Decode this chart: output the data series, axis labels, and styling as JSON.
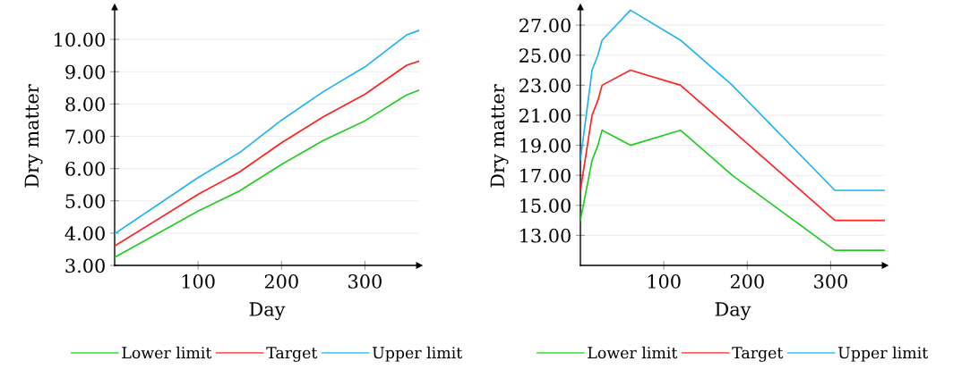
{
  "chart_data": [
    {
      "type": "line",
      "xlabel": "Day",
      "ylabel": "Dry matter",
      "x": [
        0,
        100,
        150,
        200,
        250,
        300,
        350,
        365
      ],
      "series": [
        {
          "name": "Lower limit",
          "color": "#22cc22",
          "values": [
            3.25,
            4.68,
            5.31,
            6.13,
            6.87,
            7.48,
            8.28,
            8.43
          ]
        },
        {
          "name": "Target",
          "color": "#ff2020",
          "values": [
            3.6,
            5.2,
            5.9,
            6.8,
            7.6,
            8.3,
            9.2,
            9.33
          ]
        },
        {
          "name": "Upper limit",
          "color": "#1fb4ec",
          "values": [
            3.98,
            5.72,
            6.5,
            7.5,
            8.38,
            9.15,
            10.14,
            10.28
          ]
        }
      ],
      "xlim": [
        0,
        365
      ],
      "ylim": [
        3,
        11
      ],
      "xticks": [
        100,
        200,
        300
      ],
      "yticks": [
        {
          "value": 3,
          "label": "3.00"
        },
        {
          "value": 4,
          "label": "4.00"
        },
        {
          "value": 5,
          "label": "5.00"
        },
        {
          "value": 6,
          "label": "6.00"
        },
        {
          "value": 7,
          "label": "7.00"
        },
        {
          "value": 8,
          "label": "8.00"
        },
        {
          "value": 9,
          "label": "9.00"
        },
        {
          "value": 10,
          "label": "10.00"
        }
      ],
      "grid": "y",
      "legend": "bottom"
    },
    {
      "type": "line",
      "xlabel": "Day",
      "ylabel": "Dry matter",
      "x": [
        0,
        14,
        21,
        26,
        60,
        120,
        182,
        305,
        365
      ],
      "series": [
        {
          "name": "Lower limit",
          "color": "#22cc22",
          "values": [
            14,
            18,
            19,
            20,
            19,
            20,
            17,
            12,
            12
          ]
        },
        {
          "name": "Target",
          "color": "#ff2020",
          "values": [
            16,
            21,
            22,
            23,
            24,
            23,
            20,
            14,
            14
          ]
        },
        {
          "name": "Upper limit",
          "color": "#1fb4ec",
          "values": [
            18,
            24,
            25,
            26,
            28,
            26,
            23,
            16,
            16
          ]
        }
      ],
      "xlim": [
        0,
        365
      ],
      "ylim": [
        11,
        28.2
      ],
      "xticks": [
        100,
        200,
        300
      ],
      "yticks": [
        {
          "value": 13,
          "label": "13.00"
        },
        {
          "value": 15,
          "label": "15.00"
        },
        {
          "value": 17,
          "label": "17.00"
        },
        {
          "value": 19,
          "label": "19.00"
        },
        {
          "value": 21,
          "label": "21.00"
        },
        {
          "value": 23,
          "label": "23.00"
        },
        {
          "value": 25,
          "label": "25.00"
        },
        {
          "value": 27,
          "label": "27.00"
        }
      ],
      "grid": "y",
      "legend": "bottom"
    }
  ]
}
